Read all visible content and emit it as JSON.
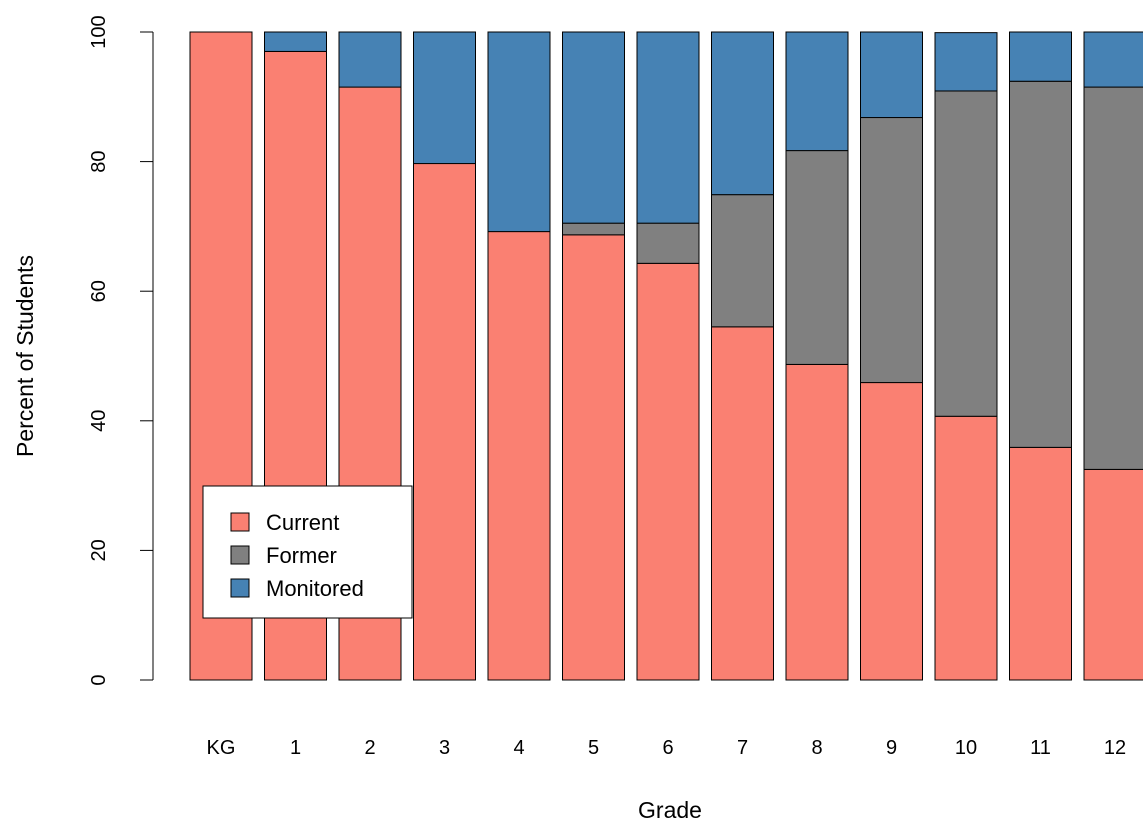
{
  "chart_data": {
    "type": "bar",
    "stacked": true,
    "title": "",
    "xlabel": "Grade",
    "ylabel": "Percent of Students",
    "ylim": [
      0,
      100
    ],
    "yticks": [
      0,
      20,
      40,
      60,
      80,
      100
    ],
    "grid": false,
    "legend_position": "bottom-left",
    "categories": [
      "KG",
      "1",
      "2",
      "3",
      "4",
      "5",
      "6",
      "7",
      "8",
      "9",
      "10",
      "11",
      "12"
    ],
    "series": [
      {
        "name": "Current",
        "color": "#fa8072",
        "values": [
          100,
          97,
          91.5,
          79.7,
          69.2,
          68.7,
          64.3,
          54.5,
          48.7,
          45.9,
          40.7,
          35.9,
          32.5
        ]
      },
      {
        "name": "Former",
        "color": "#808080",
        "values": [
          0,
          0,
          0,
          0,
          0,
          1.8,
          6.2,
          20.4,
          33.0,
          40.9,
          50.2,
          56.5,
          59.0
        ]
      },
      {
        "name": "Monitored",
        "color": "#4682b4",
        "values": [
          0,
          3,
          8.5,
          20.3,
          30.8,
          29.5,
          29.5,
          25.1,
          18.3,
          13.2,
          9.0,
          7.6,
          8.5
        ]
      }
    ]
  }
}
